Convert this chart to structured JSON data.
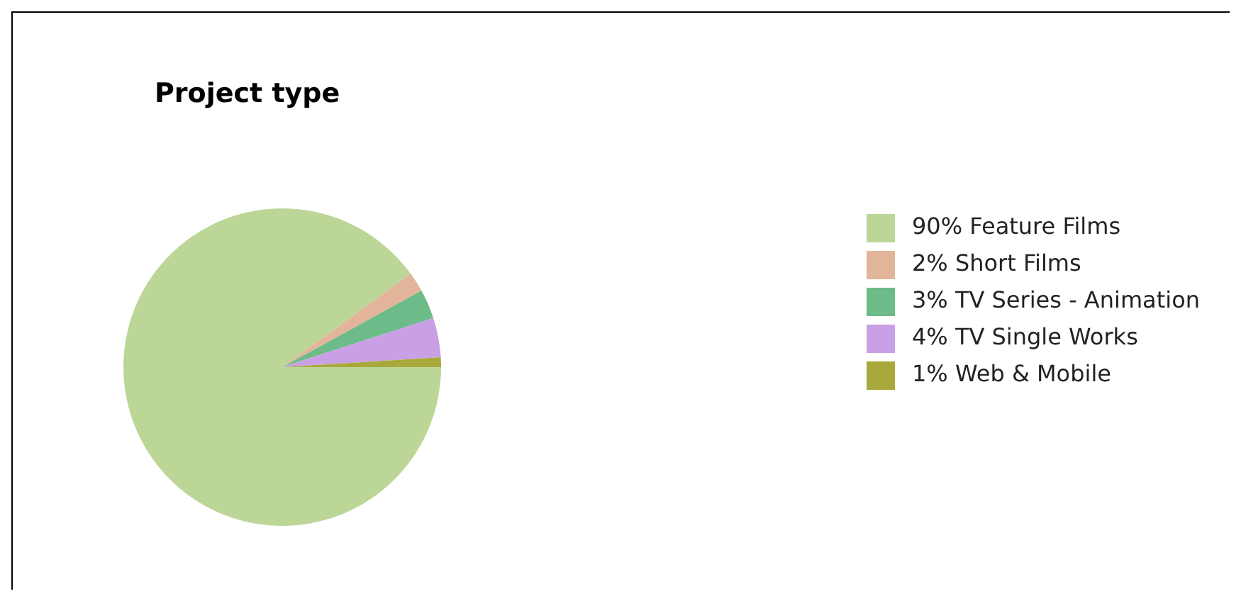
{
  "chart_data": {
    "type": "pie",
    "title": "Project type",
    "categories": [
      "90% Feature Films",
      "2% Short Films",
      "3% TV Series - Animation",
      "4% TV Single Works",
      "1% Web & Mobile"
    ],
    "values": [
      90,
      2,
      3,
      4,
      1
    ],
    "colors": [
      "#bcd698",
      "#e2b49a",
      "#6dbb88",
      "#c9a0e6",
      "#a8a83c"
    ],
    "legend": "right"
  }
}
